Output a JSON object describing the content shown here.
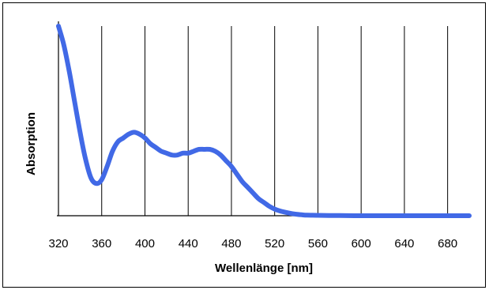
{
  "chart_data": {
    "type": "line",
    "title": "",
    "xlabel": "Wellenlänge [nm]",
    "ylabel": "Absorption",
    "xlim": [
      320,
      700
    ],
    "ylim": [
      0,
      1
    ],
    "x_ticks": [
      320,
      360,
      400,
      440,
      480,
      520,
      560,
      600,
      640,
      680
    ],
    "y_ticks_shown": false,
    "grid": "vertical",
    "legend": "none",
    "series": [
      {
        "color": "#4169e6",
        "x": [
          320,
          325,
          330,
          335,
          340,
          345,
          350,
          355,
          360,
          365,
          370,
          375,
          380,
          385,
          390,
          395,
          400,
          405,
          410,
          415,
          420,
          425,
          430,
          435,
          440,
          445,
          450,
          455,
          460,
          465,
          470,
          475,
          480,
          485,
          490,
          495,
          500,
          505,
          510,
          515,
          520,
          525,
          530,
          535,
          540,
          545,
          550,
          560,
          570,
          580,
          600,
          640,
          680,
          700
        ],
        "values": [
          1.0,
          0.9,
          0.76,
          0.6,
          0.44,
          0.3,
          0.2,
          0.17,
          0.19,
          0.26,
          0.34,
          0.39,
          0.41,
          0.43,
          0.44,
          0.43,
          0.41,
          0.38,
          0.36,
          0.34,
          0.33,
          0.32,
          0.32,
          0.33,
          0.33,
          0.34,
          0.35,
          0.35,
          0.35,
          0.34,
          0.32,
          0.29,
          0.26,
          0.22,
          0.18,
          0.15,
          0.12,
          0.09,
          0.07,
          0.05,
          0.035,
          0.025,
          0.018,
          0.012,
          0.008,
          0.005,
          0.003,
          0.002,
          0.001,
          0.001,
          0.0,
          0.0,
          0.0,
          0.0
        ]
      }
    ]
  }
}
